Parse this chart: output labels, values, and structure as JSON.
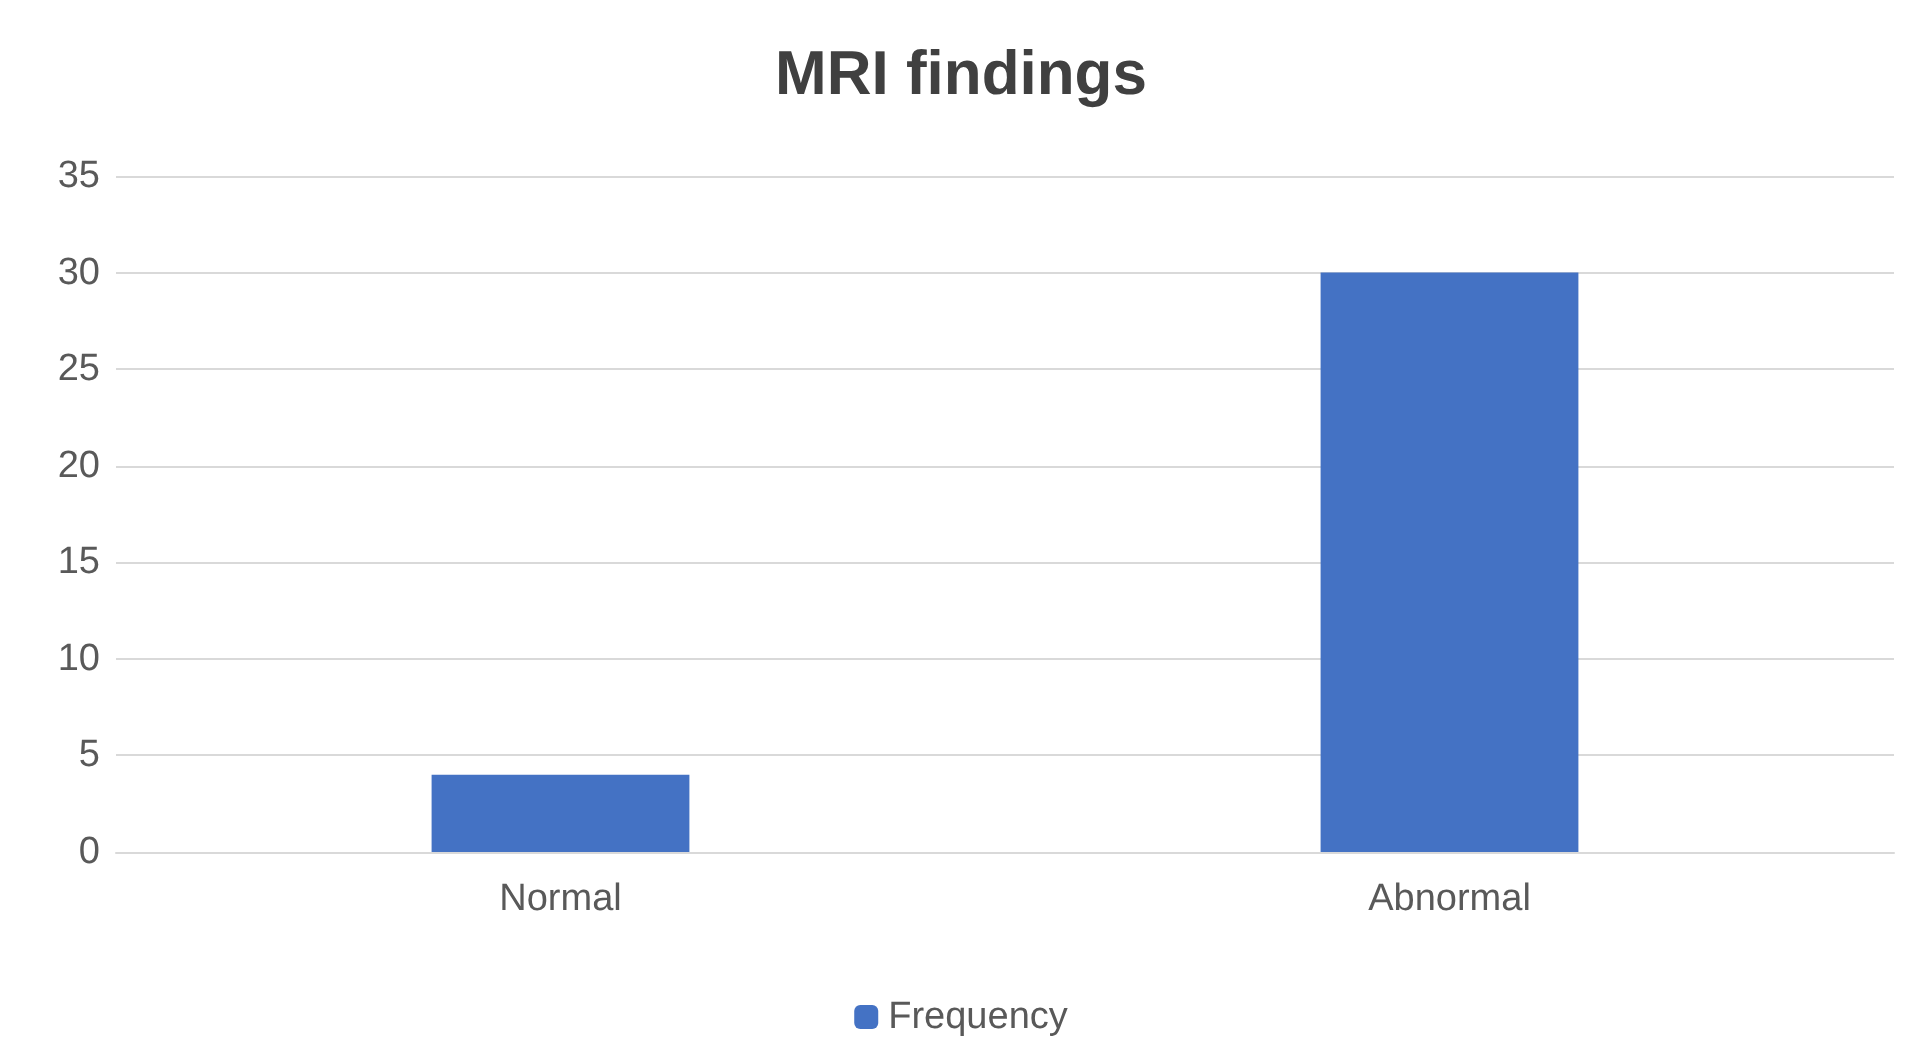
{
  "chart_data": {
    "type": "bar",
    "title": "MRI findings",
    "categories": [
      "Normal",
      "Abnormal"
    ],
    "series": [
      {
        "name": "Frequency",
        "color": "#4472c4",
        "values": [
          4,
          30
        ]
      }
    ],
    "ylim": [
      0,
      35
    ],
    "yticks": [
      0,
      5,
      10,
      15,
      20,
      25,
      30,
      35
    ],
    "grid": "y",
    "legend": "bottom"
  }
}
